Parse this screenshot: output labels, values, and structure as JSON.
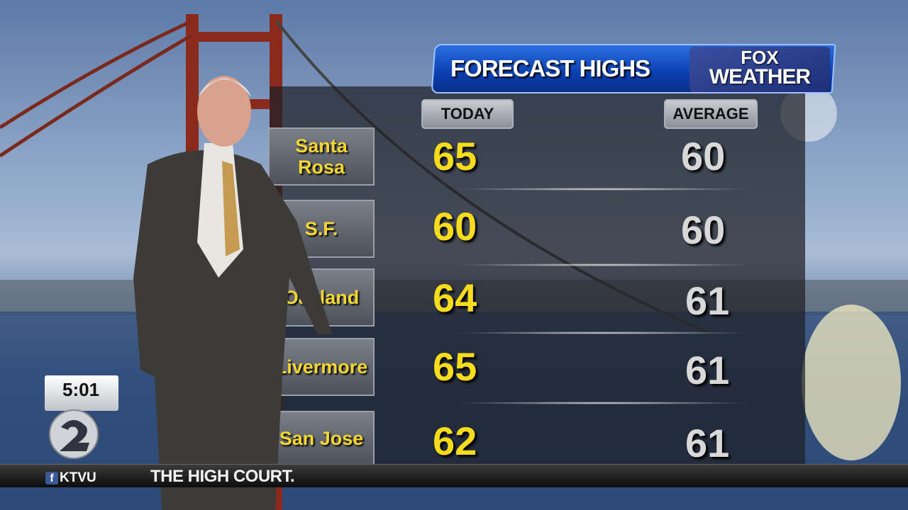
{
  "graphic": {
    "title": "FORECAST HIGHS",
    "logo": {
      "top": "FOX",
      "station": "KTVU",
      "bottom": "WEATHER"
    },
    "columns": {
      "today": "TODAY",
      "average": "AVERAGE"
    },
    "rows": [
      {
        "city": "Santa Rosa",
        "today": "65",
        "average": "60"
      },
      {
        "city": "S.F.",
        "today": "60",
        "average": "60"
      },
      {
        "city": "Oakland",
        "today": "64",
        "average": "61"
      },
      {
        "city": "Livermore",
        "today": "65",
        "average": "61"
      },
      {
        "city": "San Jose",
        "today": "62",
        "average": "61"
      }
    ]
  },
  "bug": {
    "time": "5:01",
    "channel": "2"
  },
  "ticker": {
    "social": "KTVU",
    "text": "THE HIGH COURT."
  },
  "colors": {
    "today": "#f6dc1c",
    "average": "#d8d8d8",
    "header": "#0b3fb0"
  }
}
